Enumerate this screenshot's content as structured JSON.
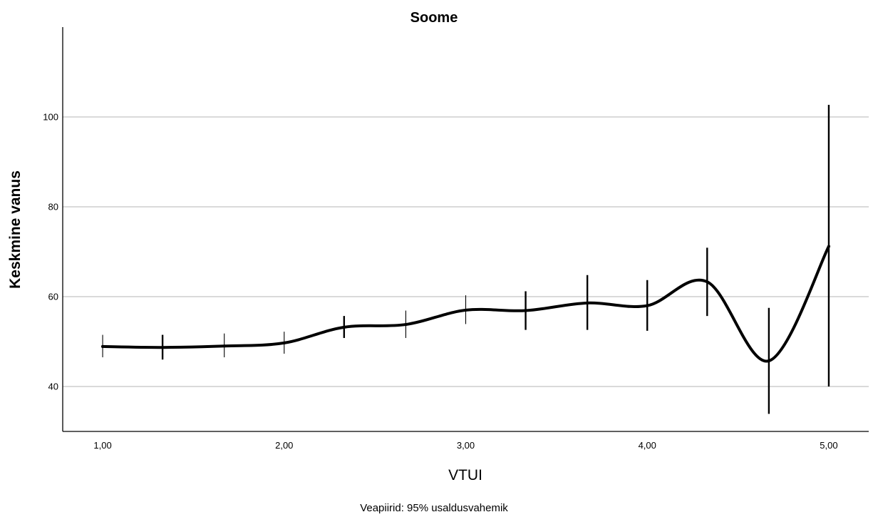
{
  "chart_data": {
    "type": "line",
    "title": "Soome",
    "xlabel": "VTUI",
    "ylabel": "Keskmine vanus",
    "footnote": "Veapiirid: 95% usaldusvahemik",
    "xlim": [
      0.78,
      5.22
    ],
    "ylim": [
      30,
      120
    ],
    "x_ticks": [
      1,
      2,
      3,
      4,
      5
    ],
    "x_tick_labels": [
      "1,00",
      "2,00",
      "3,00",
      "4,00",
      "5,00"
    ],
    "y_ticks": [
      40,
      60,
      80,
      100
    ],
    "y_tick_labels": [
      "40",
      "60",
      "80",
      "100"
    ],
    "grid": "horizontal",
    "line_color": "#000000",
    "series": [
      {
        "x": [
          1.0,
          1.33,
          1.67,
          2.0,
          2.33,
          2.67,
          3.0,
          3.33,
          3.67,
          4.0,
          4.33,
          4.67,
          5.0
        ],
        "mean": [
          48.9,
          48.7,
          49.0,
          49.7,
          53.2,
          53.8,
          57.0,
          56.9,
          58.6,
          58.0,
          63.3,
          45.7,
          71.2
        ],
        "ci_lower": [
          46.5,
          46.0,
          46.5,
          47.3,
          50.8,
          50.8,
          53.9,
          52.6,
          52.6,
          52.4,
          55.7,
          33.9,
          40.0
        ],
        "ci_upper": [
          51.5,
          51.5,
          51.8,
          52.2,
          55.7,
          56.9,
          60.3,
          61.2,
          64.8,
          63.7,
          70.9,
          57.5,
          102.7
        ]
      }
    ]
  }
}
